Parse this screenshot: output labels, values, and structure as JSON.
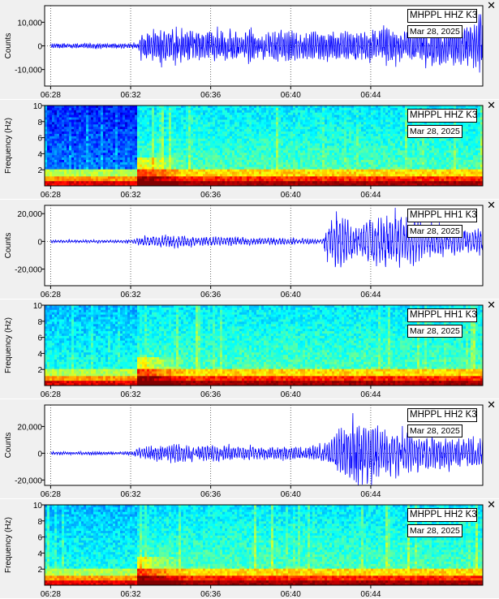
{
  "chart_data": [
    {
      "type": "line",
      "id": "p0",
      "legend": {
        "station": "MHPPL HHZ K3",
        "date": "Mar 28, 2025"
      },
      "ylabel": "Counts",
      "ylim": [
        -17000,
        17000
      ],
      "yticks": [
        10000,
        0,
        -10000
      ],
      "ytick_labels": [
        "10,000",
        "0",
        "-10,000"
      ],
      "xlim": [
        "06:27.7",
        "06:49.6"
      ],
      "xtick_labels": [
        "06:28",
        "06:32",
        "06:36",
        "06:40",
        "06:44"
      ],
      "envelope": [
        [
          0,
          1200
        ],
        [
          4.4,
          1300
        ],
        [
          4.5,
          6000
        ],
        [
          5.5,
          9000
        ],
        [
          7,
          8000
        ],
        [
          9,
          7500
        ],
        [
          11,
          7000
        ],
        [
          13,
          7500
        ],
        [
          15,
          7000
        ],
        [
          16.5,
          9000
        ],
        [
          18,
          8500
        ],
        [
          20,
          9500
        ],
        [
          21,
          12000
        ],
        [
          21.5,
          16000
        ],
        [
          21.9,
          9000
        ]
      ],
      "freq": 0.85,
      "color": "#0000ff"
    },
    {
      "type": "heatmap",
      "id": "p1",
      "legend": {
        "station": "MHPPL HHZ K3",
        "date": "Mar 28, 2025"
      },
      "ylabel": "Frequency (Hz)",
      "ylim": [
        0,
        10
      ],
      "yticks": [
        10,
        8,
        6,
        4,
        2
      ],
      "ytick_labels": [
        "10",
        "8",
        "6",
        "4",
        "2"
      ],
      "xtick_labels": [
        "06:28",
        "06:32",
        "06:36",
        "06:40",
        "06:44"
      ],
      "onset": 4.3,
      "quiet_blue": true
    },
    {
      "type": "line",
      "id": "p2",
      "legend": {
        "station": "MHPPL HH1 K3",
        "date": "Mar 28, 2025"
      },
      "ylabel": "Counts",
      "ylim": [
        -32000,
        26000
      ],
      "yticks": [
        20000,
        0,
        -20000
      ],
      "ytick_labels": [
        "20,000",
        "0",
        "-20,000"
      ],
      "xtick_labels": [
        "06:28",
        "06:32",
        "06:36",
        "06:40",
        "06:44"
      ],
      "envelope": [
        [
          0,
          1200
        ],
        [
          4,
          1300
        ],
        [
          4.5,
          3500
        ],
        [
          6,
          6000
        ],
        [
          7,
          4500
        ],
        [
          9,
          4000
        ],
        [
          11,
          3000
        ],
        [
          13,
          2500
        ],
        [
          13.6,
          2000
        ],
        [
          13.8,
          14000
        ],
        [
          14.3,
          26000
        ],
        [
          15,
          18000
        ],
        [
          17,
          22000
        ],
        [
          19,
          15000
        ],
        [
          20,
          12000
        ],
        [
          21.9,
          10000
        ]
      ],
      "freq": 0.6,
      "color": "#0000ff"
    },
    {
      "type": "heatmap",
      "id": "p3",
      "legend": {
        "station": "MHPPL HH1 K3",
        "date": "Mar 28, 2025"
      },
      "ylabel": "Frequency (Hz)",
      "ylim": [
        0,
        10
      ],
      "yticks": [
        10,
        8,
        6,
        4,
        2
      ],
      "ytick_labels": [
        "10",
        "8",
        "6",
        "4",
        "2"
      ],
      "xtick_labels": [
        "06:28",
        "06:32",
        "06:36",
        "06:40",
        "06:44"
      ],
      "onset": 4.3,
      "quiet_blue": false
    },
    {
      "type": "line",
      "id": "p4",
      "legend": {
        "station": "MHPPL HH2 K3",
        "date": "Mar 28, 2025"
      },
      "ylabel": "Counts",
      "ylim": [
        -24000,
        36000
      ],
      "yticks": [
        20000,
        0,
        -20000
      ],
      "ytick_labels": [
        "20,000",
        "0",
        "-20,000"
      ],
      "xtick_labels": [
        "06:28",
        "06:32",
        "06:36",
        "06:40",
        "06:44"
      ],
      "envelope": [
        [
          0,
          1300
        ],
        [
          4,
          1500
        ],
        [
          4.5,
          5000
        ],
        [
          6,
          8500
        ],
        [
          7,
          7000
        ],
        [
          9,
          6500
        ],
        [
          11,
          6000
        ],
        [
          13,
          5500
        ],
        [
          13.8,
          8000
        ],
        [
          14.3,
          18000
        ],
        [
          15.5,
          30000
        ],
        [
          16.5,
          22000
        ],
        [
          18,
          16000
        ],
        [
          20,
          14000
        ],
        [
          21.9,
          12000
        ]
      ],
      "freq": 0.7,
      "color": "#0000ff"
    },
    {
      "type": "heatmap",
      "id": "p5",
      "legend": {
        "station": "MHPPL HH2 K3",
        "date": "Mar 28, 2025"
      },
      "ylabel": "Frequency (Hz)",
      "ylim": [
        0,
        10
      ],
      "yticks": [
        10,
        8,
        6,
        4,
        2
      ],
      "ytick_labels": [
        "10",
        "8",
        "6",
        "4",
        "2"
      ],
      "xtick_labels": [
        "06:28",
        "06:32",
        "06:36",
        "06:40",
        "06:44"
      ],
      "onset": 4.3,
      "quiet_blue": false
    }
  ],
  "ui": {
    "close_glyph": "✕"
  }
}
